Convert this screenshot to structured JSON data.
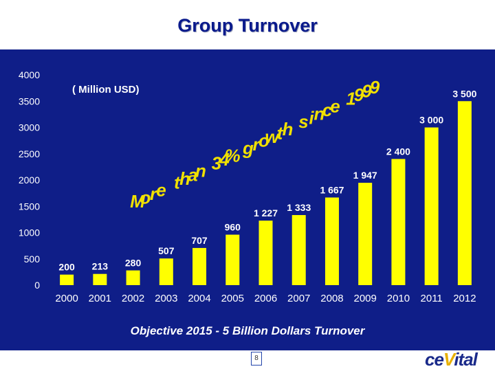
{
  "slide": {
    "title": "Group Turnover",
    "objective": "Objective 2015  - 5 Billion Dollars Turnover",
    "page_number": "8",
    "logo_text": "ce",
    "logo_mark": "V",
    "logo_tail": "ital"
  },
  "chart_data": {
    "type": "bar",
    "title": "Group Turnover",
    "unit_label": "( Million USD)",
    "categories": [
      "2000",
      "2001",
      "2002",
      "2003",
      "2004",
      "2005",
      "2006",
      "2007",
      "2008",
      "2009",
      "2010",
      "2011",
      "2012"
    ],
    "values": [
      200,
      213,
      280,
      507,
      707,
      960,
      1227,
      1333,
      1667,
      1947,
      2400,
      3000,
      3500
    ],
    "value_labels": [
      "200",
      "213",
      "280",
      "507",
      "707",
      "960",
      "1 227",
      "1 333",
      "1 667",
      "1 947",
      "2 400",
      "3 000",
      "3 500"
    ],
    "ylim": [
      0,
      4000
    ],
    "yticks": [
      0,
      500,
      1000,
      1500,
      2000,
      2500,
      3000,
      3500,
      4000
    ],
    "annotation": "More than 34% growth since 1999",
    "colors": {
      "background": "#0f1e88",
      "bar": "#ffff00",
      "annotation": "#f0e000",
      "text": "#ffffff",
      "title": "#0a1a8c"
    }
  }
}
